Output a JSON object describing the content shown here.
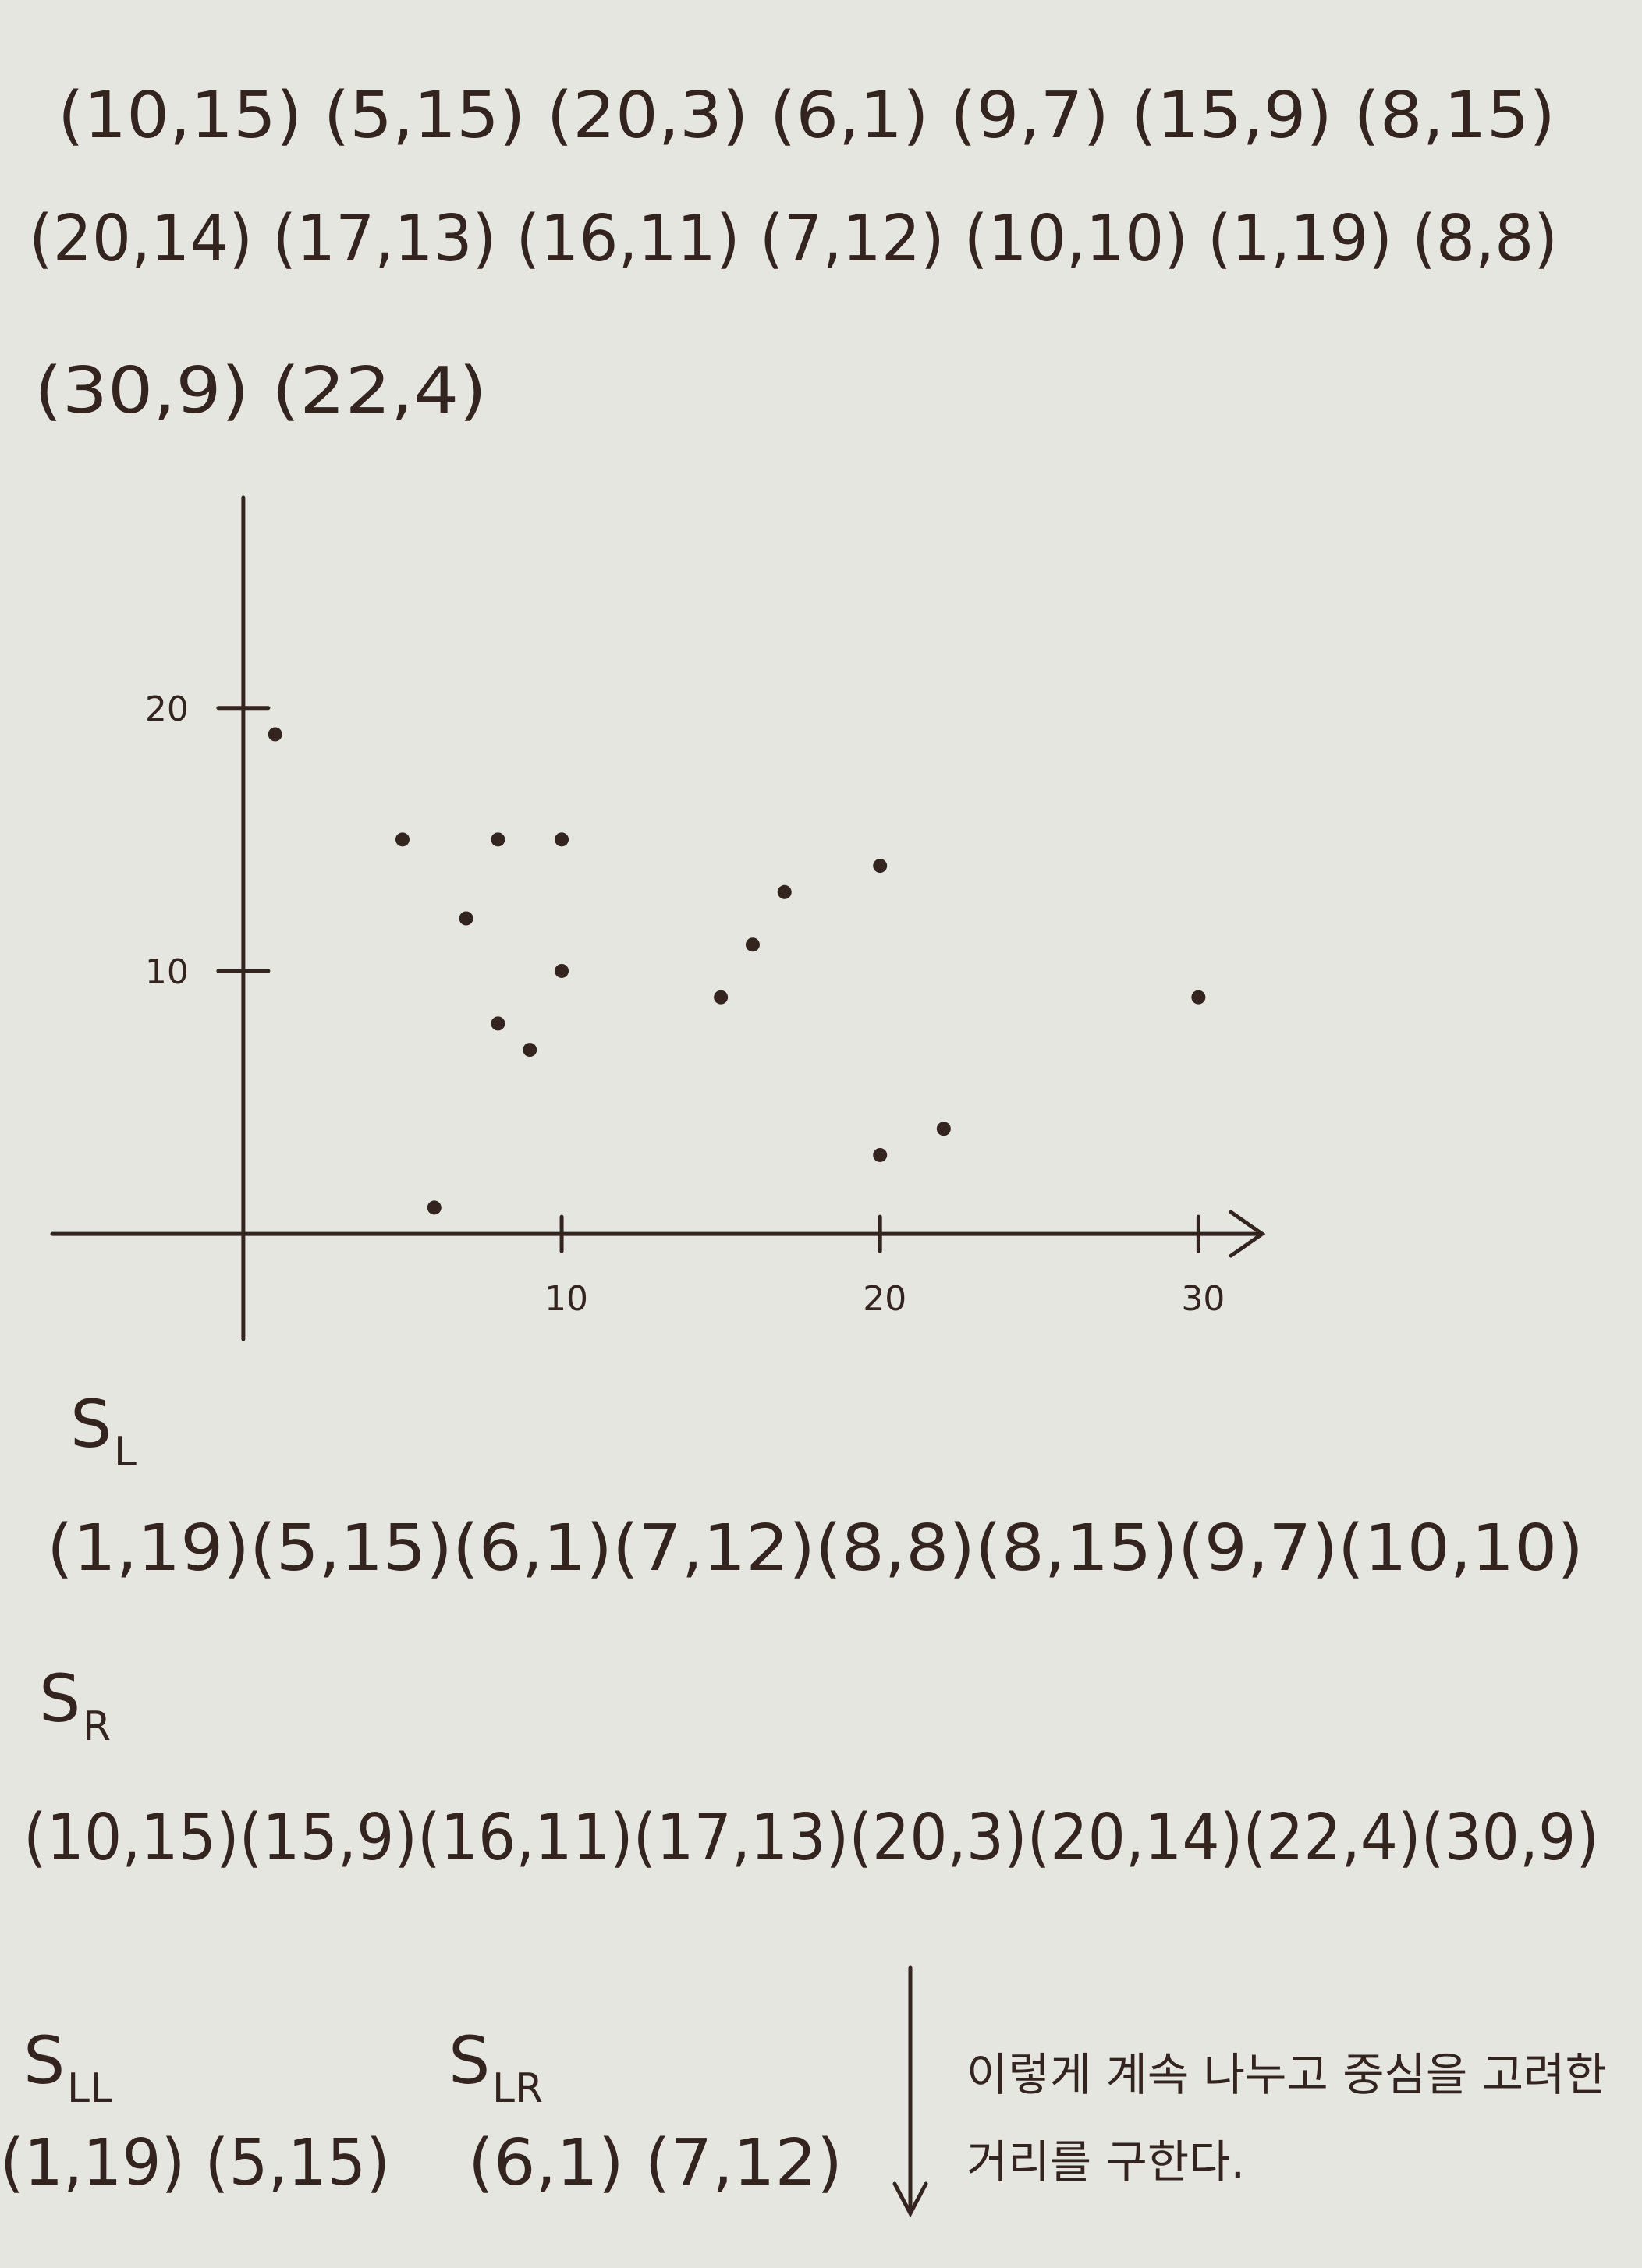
{
  "point_rows": [
    "(10,15) (5,15) (20,3) (6,1) (9,7) (15,9) (8,15)",
    "(20,14) (17,13) (16,11) (7,12) (10,10) (1,19) (8,8)",
    "(30,9) (22,4)"
  ],
  "plot": {
    "type": "scatter",
    "x": [
      10,
      5,
      20,
      6,
      9,
      15,
      8,
      20,
      17,
      16,
      7,
      10,
      1,
      8,
      30,
      22
    ],
    "y": [
      15,
      15,
      3,
      1,
      7,
      9,
      15,
      14,
      13,
      11,
      12,
      10,
      19,
      8,
      9,
      4
    ],
    "xlim": [
      -6,
      32
    ],
    "ylim": [
      -4,
      28
    ],
    "xticks": [
      10,
      20,
      30
    ],
    "yticks": [
      10,
      20
    ]
  },
  "sets": [
    {
      "name": "S",
      "sub": "L",
      "points": "(1,19)(5,15)(6,1)(7,12)(8,8)(8,15)(9,7)(10,10)"
    },
    {
      "name": "S",
      "sub": "R",
      "points": "(10,15)(15,9)(16,11)(17,13)(20,3)(20,14)(22,4)(30,9)"
    },
    {
      "name": "S",
      "sub": "LL",
      "points": "(1,19) (5,15)"
    },
    {
      "name": "S",
      "sub": "LR",
      "points": "(6,1) (7,12)"
    }
  ],
  "note": [
    "이렇게 계속 나누고 중심을 고려한",
    "거리를 구한다."
  ]
}
